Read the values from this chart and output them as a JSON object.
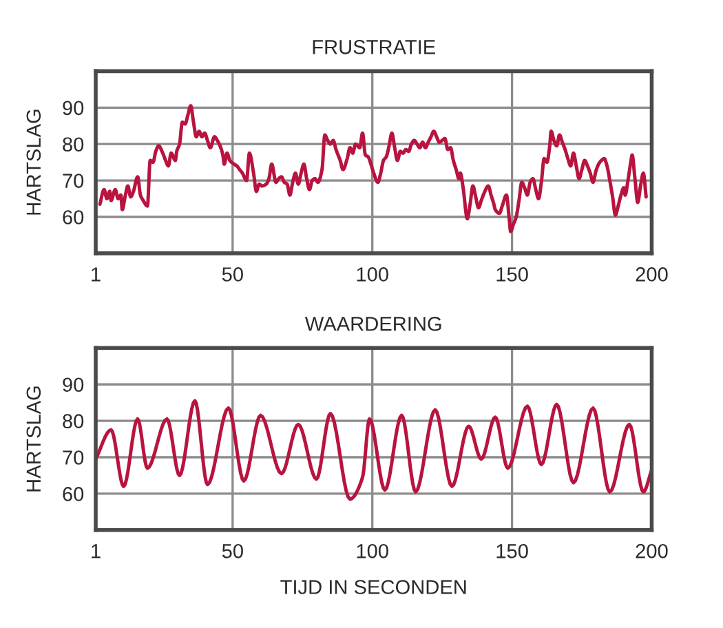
{
  "chart_data": [
    {
      "type": "line",
      "title": "FRUSTRATIE",
      "ylabel": "HARTSLAG",
      "color": "#b8143f",
      "grid": true,
      "xlim": [
        1,
        200
      ],
      "ylim": [
        50,
        100
      ],
      "xticks": [
        1,
        50,
        100,
        150,
        200
      ],
      "yticks": [
        60,
        70,
        80,
        90
      ],
      "x": [
        2.5,
        4,
        5,
        6,
        6.5,
        8,
        9,
        10,
        10.5,
        11.5,
        12.5,
        13.5,
        14.5,
        16,
        17,
        18,
        19.5,
        20.5,
        21.5,
        22.5,
        23.5,
        25,
        26,
        27,
        28,
        29.5,
        30,
        31,
        32,
        33,
        34,
        35,
        36,
        37,
        38,
        39,
        40,
        41,
        42,
        43.5,
        44.5,
        45.5,
        46.5,
        47,
        48,
        49,
        50.5,
        51.5,
        52.5,
        53.5,
        55,
        56,
        57.5,
        58.5,
        59.5,
        60.5,
        62,
        63,
        64,
        65.5,
        66.5,
        67.5,
        68.5,
        69.5,
        70.5,
        71.5,
        72.5,
        73.5,
        74.5,
        75.5,
        76.5,
        77.5,
        78.5,
        79.5,
        80.5,
        82,
        83,
        84,
        85,
        86,
        87,
        88.5,
        89.5,
        91,
        92,
        93,
        94,
        95.5,
        96.5,
        97.5,
        98.5,
        99.5,
        100.5,
        102,
        103,
        104,
        105,
        106,
        107,
        108,
        109,
        110,
        111,
        112,
        113,
        114,
        115,
        116,
        117,
        118,
        119,
        120,
        121,
        122,
        123,
        124,
        125,
        126,
        127,
        128,
        129,
        130,
        131,
        131.5,
        132.5,
        134,
        135,
        136,
        137,
        138,
        139,
        140,
        141.5,
        142.5,
        143.5,
        144,
        145.5,
        146.5,
        148,
        149,
        149.5,
        150.5,
        151.5,
        152.5,
        153.5,
        154.5,
        155.5,
        156.5,
        157.5,
        158.5,
        159.5,
        160.5,
        161.5,
        162.5,
        163.5,
        164,
        165,
        166,
        167,
        168,
        169,
        170,
        171,
        172,
        173,
        174,
        175,
        176,
        177,
        178,
        179,
        180,
        181,
        182,
        183,
        184,
        185,
        186,
        187,
        188,
        189,
        190,
        190.5,
        191.5,
        192.5,
        193,
        194,
        195,
        196,
        197,
        198
      ],
      "values": [
        63.5,
        67.5,
        65,
        67,
        64.5,
        67.5,
        65,
        66,
        62,
        65.5,
        68.5,
        65.5,
        67,
        71,
        66,
        64.5,
        63,
        75.5,
        75,
        78,
        79.5,
        77.5,
        75.5,
        74,
        77.5,
        75.5,
        78,
        80,
        86,
        85.5,
        88,
        90.5,
        86,
        82,
        83.5,
        82,
        83,
        81,
        79,
        82,
        81,
        79.5,
        77,
        74.5,
        77.5,
        75.5,
        74.5,
        74,
        73,
        72,
        70,
        77.5,
        72,
        67,
        69,
        68.5,
        69,
        70.5,
        74.5,
        69.5,
        70.5,
        71,
        69.5,
        69,
        66,
        69.5,
        72,
        69,
        72,
        74.5,
        70.5,
        67.5,
        70,
        70.5,
        69.5,
        73,
        82.5,
        81,
        80,
        81,
        78.5,
        75.5,
        73,
        76,
        79,
        77.5,
        80,
        79,
        83,
        77,
        76.5,
        74.5,
        72,
        69.5,
        72,
        75.5,
        76.5,
        79.5,
        83,
        79,
        75.5,
        78,
        77.5,
        78.5,
        78,
        80,
        81,
        80,
        79,
        80.5,
        79,
        80.5,
        82,
        83.5,
        82,
        80.5,
        81,
        81.5,
        78.5,
        79,
        75.5,
        73,
        70.5,
        72,
        68,
        59.5,
        63.5,
        68.5,
        65.5,
        62.5,
        64.5,
        66.5,
        68.5,
        66,
        63.5,
        62,
        61,
        63,
        66,
        59.5,
        56,
        58,
        60,
        64.5,
        69.5,
        68,
        66,
        69.5,
        70.5,
        67.5,
        65,
        69.5,
        76,
        75,
        79.5,
        83.5,
        81,
        79.5,
        82.5,
        80.5,
        78.5,
        76,
        74,
        77.5,
        74,
        70.5,
        73,
        75.5,
        74,
        72,
        69.5,
        72.5,
        74.5,
        75.5,
        76,
        74,
        70,
        65.5,
        60.5,
        63,
        66,
        68,
        66,
        70,
        75,
        77,
        70.5,
        64,
        68.5,
        72,
        65.5
      ]
    },
    {
      "type": "line",
      "title": "WAARDERING",
      "ylabel": "HARTSLAG",
      "xlabel": "TIJD IN SECONDEN",
      "color": "#b8143f",
      "grid": true,
      "xlim": [
        1,
        200
      ],
      "ylim": [
        50,
        100
      ],
      "xticks": [
        1,
        50,
        100,
        150,
        200
      ],
      "yticks": [
        60,
        70,
        80,
        90
      ],
      "x": [
        1,
        6.5,
        11,
        16,
        19.5,
        26.5,
        31,
        36.5,
        41,
        48.5,
        54,
        60,
        67.5,
        73.5,
        80,
        85,
        92,
        96.5,
        99,
        104.5,
        110.5,
        115.5,
        122.5,
        128.5,
        134.5,
        139,
        144,
        148.5,
        155.5,
        160.5,
        166,
        172,
        179,
        185,
        192,
        197,
        200
      ],
      "values": [
        69.5,
        77.5,
        62,
        80.5,
        67,
        80.5,
        65,
        85.5,
        62.5,
        83.5,
        63.5,
        81.5,
        65.5,
        79,
        64,
        82,
        58.5,
        64.5,
        80.5,
        61,
        81.5,
        60.5,
        83,
        62,
        78.5,
        69.5,
        81,
        67,
        84,
        68,
        84.5,
        63,
        83.5,
        60.5,
        79,
        60.5,
        66.5
      ]
    }
  ]
}
